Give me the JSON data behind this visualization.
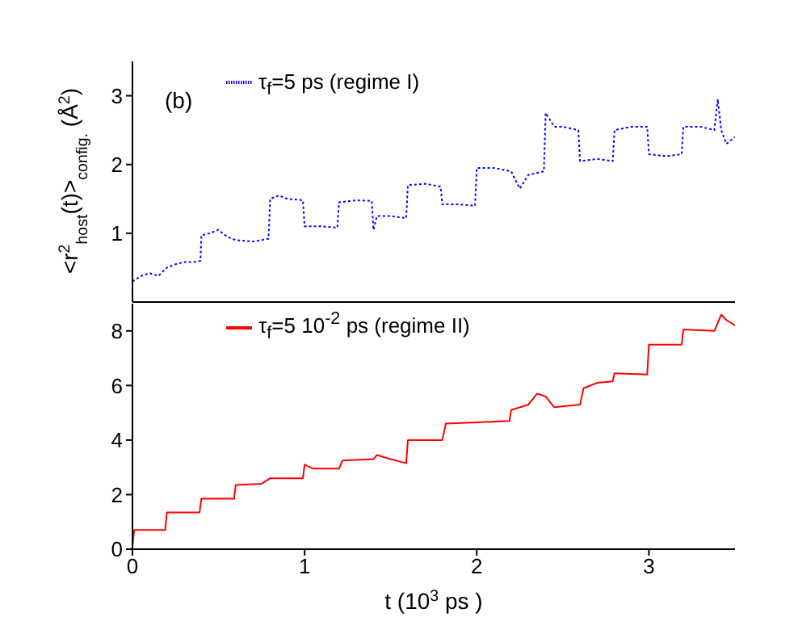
{
  "chart_data": [
    {
      "type": "line",
      "ylabel": "<r$^{2}$$_{host}$(t)>$_{config.}$ (Å$^{2}$)",
      "annotations": [
        "(b)"
      ],
      "xlim": [
        0,
        3.5
      ],
      "xticks": [
        0,
        1,
        2,
        3
      ],
      "ylim": [
        0,
        3.5
      ],
      "yticks": [
        1,
        2,
        3
      ],
      "tick_labels": "y",
      "legend": "top",
      "marker": "none",
      "grid": false,
      "x": [
        0,
        0.05,
        0.1,
        0.15,
        0.2,
        0.25,
        0.3,
        0.35,
        0.395,
        0.4,
        0.45,
        0.5,
        0.55,
        0.6,
        0.7,
        0.79,
        0.8,
        0.85,
        0.9,
        0.99,
        1.0,
        1.1,
        1.19,
        1.2,
        1.3,
        1.39,
        1.4,
        1.42,
        1.5,
        1.59,
        1.6,
        1.7,
        1.79,
        1.8,
        1.9,
        1.99,
        2.0,
        2.1,
        2.2,
        2.25,
        2.3,
        2.39,
        2.4,
        2.45,
        2.5,
        2.59,
        2.6,
        2.7,
        2.79,
        2.8,
        2.9,
        2.99,
        3.0,
        3.1,
        3.19,
        3.2,
        3.3,
        3.38,
        3.4,
        3.42,
        3.45,
        3.5
      ],
      "series": [
        {
          "name": "τ$_{f}$=5 ps (regime I)",
          "color": "#0000ff",
          "line_style": "dotted",
          "values": [
            0.3,
            0.38,
            0.42,
            0.38,
            0.5,
            0.55,
            0.58,
            0.58,
            0.6,
            0.97,
            1.0,
            1.05,
            0.95,
            0.9,
            0.88,
            0.92,
            1.5,
            1.55,
            1.5,
            1.48,
            1.1,
            1.1,
            1.08,
            1.45,
            1.48,
            1.47,
            1.05,
            1.25,
            1.25,
            1.22,
            1.7,
            1.72,
            1.68,
            1.42,
            1.42,
            1.4,
            1.95,
            1.95,
            1.9,
            1.65,
            1.85,
            1.9,
            2.75,
            2.55,
            2.55,
            2.5,
            2.05,
            2.08,
            2.05,
            2.5,
            2.55,
            2.55,
            2.15,
            2.12,
            2.15,
            2.55,
            2.55,
            2.5,
            2.95,
            2.5,
            2.3,
            2.4
          ]
        }
      ]
    },
    {
      "type": "line",
      "xlabel": "t  (10$^{3}$ ps )",
      "xlim": [
        0,
        3.5
      ],
      "xticks": [
        0,
        1,
        2,
        3
      ],
      "ylim": [
        0,
        9
      ],
      "yticks": [
        0,
        2,
        4,
        6,
        8
      ],
      "legend": "top",
      "marker": "none",
      "grid": false,
      "x": [
        0,
        0.01,
        0.19,
        0.2,
        0.39,
        0.4,
        0.59,
        0.6,
        0.75,
        0.8,
        0.99,
        1.0,
        1.05,
        1.2,
        1.22,
        1.4,
        1.42,
        1.5,
        1.59,
        1.6,
        1.8,
        1.82,
        2.0,
        2.19,
        2.2,
        2.3,
        2.35,
        2.4,
        2.45,
        2.6,
        2.62,
        2.7,
        2.79,
        2.8,
        2.99,
        3.0,
        3.19,
        3.2,
        3.38,
        3.42,
        3.45,
        3.5
      ],
      "series": [
        {
          "name": "τ$_{f}$=5 10$^{-2}$ ps (regime II)",
          "color": "#ff0000",
          "line_style": "solid",
          "values": [
            0.1,
            0.7,
            0.7,
            1.35,
            1.35,
            1.85,
            1.85,
            2.35,
            2.4,
            2.6,
            2.6,
            3.1,
            2.95,
            2.95,
            3.25,
            3.3,
            3.45,
            3.3,
            3.15,
            4.0,
            4.0,
            4.6,
            4.65,
            4.7,
            5.1,
            5.3,
            5.7,
            5.6,
            5.2,
            5.3,
            5.9,
            6.1,
            6.15,
            6.45,
            6.4,
            7.5,
            7.5,
            8.05,
            8.0,
            8.6,
            8.4,
            8.2
          ]
        }
      ]
    }
  ]
}
